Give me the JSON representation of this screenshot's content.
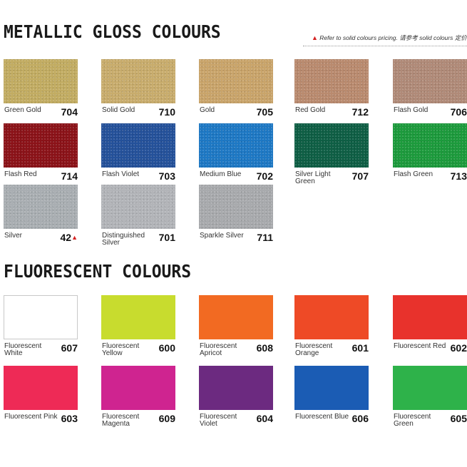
{
  "metallic": {
    "title": "METALLIC GLOSS COLOURS",
    "note_marker": "▲",
    "note": "Refer to solid colours pricing. 请参考 solid colours 定价",
    "swatches": [
      {
        "name": "Green Gold",
        "code": "704",
        "color": "#c2ac62"
      },
      {
        "name": "Solid Gold",
        "code": "710",
        "color": "#c8ac6c"
      },
      {
        "name": "Gold",
        "code": "705",
        "color": "#c9a46a"
      },
      {
        "name": "Red Gold",
        "code": "712",
        "color": "#b98a6e"
      },
      {
        "name": "Flash Gold",
        "code": "706",
        "color": "#b08a78"
      },
      {
        "name": "Flash Red",
        "code": "714",
        "color": "#8b1218"
      },
      {
        "name": "Flash Violet",
        "code": "703",
        "color": "#24519a"
      },
      {
        "name": "Medium Blue",
        "code": "702",
        "color": "#1d78c4"
      },
      {
        "name": "Silver Light Green",
        "code": "707",
        "color": "#0e5e44"
      },
      {
        "name": "Flash Green",
        "code": "713",
        "color": "#1c9a3c"
      },
      {
        "name": "Silver",
        "code": "42",
        "code_marker": "▲",
        "color": "#a9aeb2"
      },
      {
        "name": "Distinguished Silver",
        "code": "701",
        "color": "#b2b4b8"
      },
      {
        "name": "Sparkle Silver",
        "code": "711",
        "color": "#a8aaad"
      }
    ]
  },
  "fluorescent": {
    "title": "FLUORESCENT COLOURS",
    "swatches": [
      {
        "name": "Fluorescent White",
        "code": "607",
        "color": "#ffffff"
      },
      {
        "name": "Fluorescent Yellow",
        "code": "600",
        "color": "#c8dc2e"
      },
      {
        "name": "Fluorescent Apricot",
        "code": "608",
        "color": "#f26a22"
      },
      {
        "name": "Fluorescent Orange",
        "code": "601",
        "color": "#ee4a26"
      },
      {
        "name": "Fluorescent Red",
        "code": "602",
        "color": "#e8322c"
      },
      {
        "name": "Fluorescent Pink",
        "code": "603",
        "color": "#ee2a56"
      },
      {
        "name": "Fluorescent Magenta",
        "code": "609",
        "color": "#cf2490"
      },
      {
        "name": "Fluorescent Violet",
        "code": "604",
        "color": "#6c2a80"
      },
      {
        "name": "Fluorescent Blue",
        "code": "606",
        "color": "#1b5cb4"
      },
      {
        "name": "Fluorescent Green",
        "code": "605",
        "color": "#2eb24a"
      }
    ]
  }
}
